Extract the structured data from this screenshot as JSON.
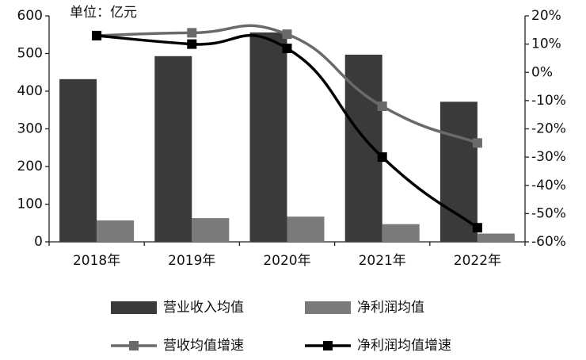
{
  "chart_data": {
    "type": "bar",
    "unit_label": "单位：亿元",
    "categories": [
      "2018年",
      "2019年",
      "2020年",
      "2021年",
      "2022年"
    ],
    "series": [
      {
        "name": "营业收入均值",
        "type": "bar",
        "color": "#3a3a3a",
        "values": [
          432,
          493,
          556,
          497,
          372
        ]
      },
      {
        "name": "净利润均值",
        "type": "bar",
        "color": "#7a7a7a",
        "values": [
          57,
          63,
          67,
          47,
          22
        ]
      },
      {
        "name": "营收均值增速",
        "type": "line",
        "axis": "y2",
        "color": "#6a6a6a",
        "values": [
          13,
          14,
          13.5,
          -12,
          -25
        ]
      },
      {
        "name": "净利润均值增速",
        "type": "line",
        "axis": "y2",
        "color": "#000000",
        "values": [
          13,
          10,
          8.5,
          -30,
          -55
        ]
      }
    ],
    "ylim": [
      0,
      600
    ],
    "yticks": [
      0,
      100,
      200,
      300,
      400,
      500,
      600
    ],
    "y2lim": [
      -60,
      20
    ],
    "y2ticks": [
      {
        "value": 20,
        "label": "20%"
      },
      {
        "value": 10,
        "label": "10%"
      },
      {
        "value": 0,
        "label": "0%"
      },
      {
        "value": -10,
        "label": "-10%"
      },
      {
        "value": -20,
        "label": "-20%"
      },
      {
        "value": -30,
        "label": "-30%"
      },
      {
        "value": -40,
        "label": "-40%"
      },
      {
        "value": -50,
        "label": "-50%"
      },
      {
        "value": -60,
        "label": "-60%"
      }
    ]
  }
}
